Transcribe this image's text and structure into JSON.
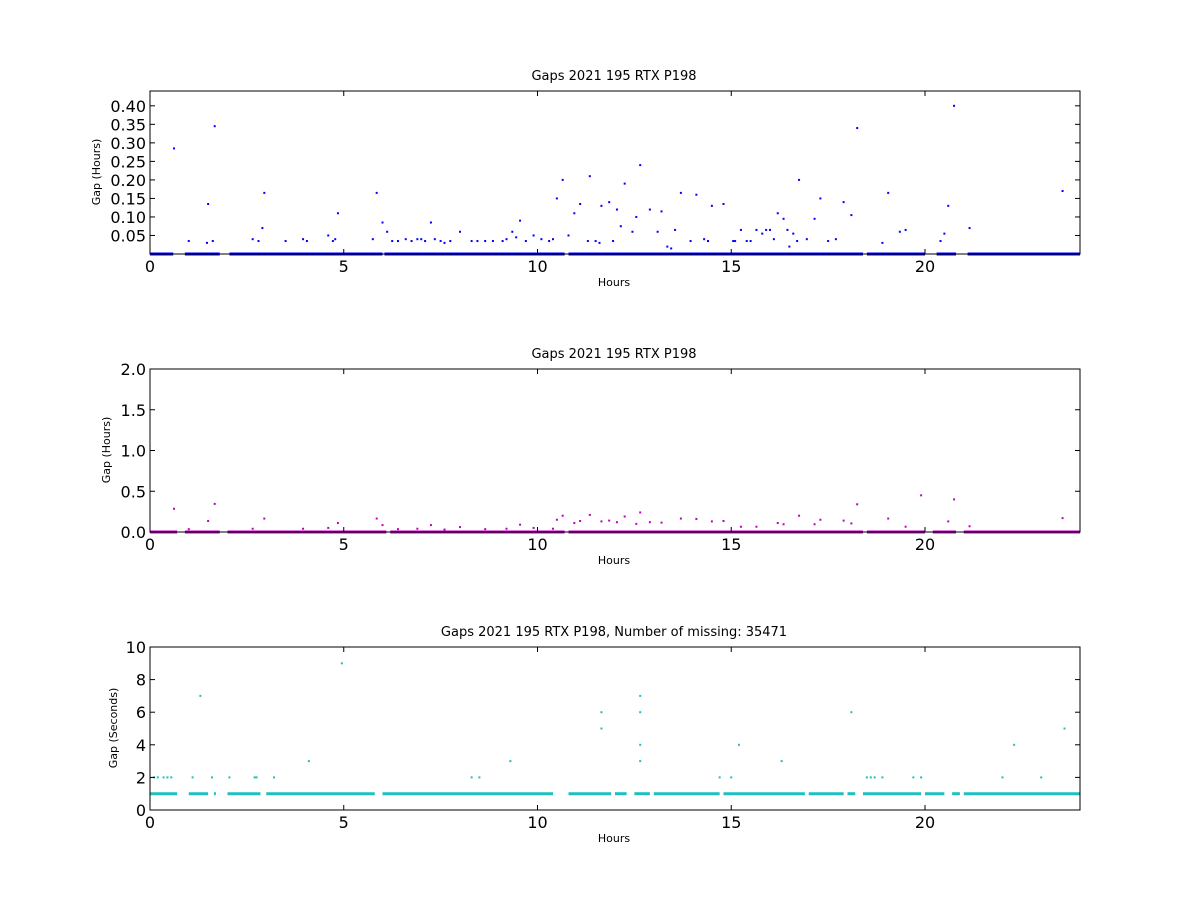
{
  "chart_data": [
    {
      "type": "scatter",
      "title": "Gaps 2021 195 RTX  P198",
      "xlabel": "Hours",
      "ylabel": "Gap (Hours)",
      "xlim": [
        0,
        24
      ],
      "ylim": [
        0,
        0.44
      ],
      "xticks": [
        0,
        5,
        10,
        15,
        20
      ],
      "xtick_labels": [
        "0",
        "5",
        "10",
        "15",
        "20"
      ],
      "yticks": [
        0.05,
        0.1,
        0.15,
        0.2,
        0.25,
        0.3,
        0.35,
        0.4
      ],
      "ytick_labels": [
        "0.05",
        "0.10",
        "0.15",
        "0.20",
        "0.25",
        "0.30",
        "0.35",
        "0.40"
      ],
      "color": "#0000ff",
      "baseline_value": 0.0,
      "baseline_ranges": [
        [
          0,
          0.6
        ],
        [
          0.9,
          1.8
        ],
        [
          2.05,
          6.0
        ],
        [
          6.05,
          10.7
        ],
        [
          10.8,
          18.4
        ],
        [
          18.5,
          20.0
        ],
        [
          20.3,
          20.8
        ],
        [
          21.1,
          24
        ]
      ],
      "points": [
        [
          0.62,
          0.285
        ],
        [
          1.0,
          0.035
        ],
        [
          1.47,
          0.03
        ],
        [
          1.5,
          0.135
        ],
        [
          1.62,
          0.035
        ],
        [
          1.67,
          0.345
        ],
        [
          2.65,
          0.04
        ],
        [
          2.8,
          0.035
        ],
        [
          2.9,
          0.07
        ],
        [
          2.95,
          0.165
        ],
        [
          3.5,
          0.035
        ],
        [
          3.95,
          0.04
        ],
        [
          4.05,
          0.035
        ],
        [
          4.6,
          0.05
        ],
        [
          4.72,
          0.035
        ],
        [
          4.78,
          0.04
        ],
        [
          4.85,
          0.11
        ],
        [
          5.75,
          0.04
        ],
        [
          5.85,
          0.165
        ],
        [
          6.0,
          0.085
        ],
        [
          6.12,
          0.06
        ],
        [
          6.25,
          0.035
        ],
        [
          6.4,
          0.035
        ],
        [
          6.6,
          0.04
        ],
        [
          6.75,
          0.035
        ],
        [
          6.9,
          0.04
        ],
        [
          7.0,
          0.04
        ],
        [
          7.1,
          0.035
        ],
        [
          7.25,
          0.085
        ],
        [
          7.35,
          0.04
        ],
        [
          7.5,
          0.035
        ],
        [
          7.6,
          0.03
        ],
        [
          7.75,
          0.035
        ],
        [
          8.0,
          0.06
        ],
        [
          8.3,
          0.035
        ],
        [
          8.45,
          0.035
        ],
        [
          8.65,
          0.035
        ],
        [
          8.85,
          0.035
        ],
        [
          9.1,
          0.035
        ],
        [
          9.2,
          0.04
        ],
        [
          9.35,
          0.06
        ],
        [
          9.45,
          0.045
        ],
        [
          9.55,
          0.09
        ],
        [
          9.7,
          0.035
        ],
        [
          9.9,
          0.05
        ],
        [
          10.1,
          0.04
        ],
        [
          10.3,
          0.035
        ],
        [
          10.4,
          0.04
        ],
        [
          10.5,
          0.15
        ],
        [
          10.65,
          0.2
        ],
        [
          10.8,
          0.05
        ],
        [
          10.95,
          0.11
        ],
        [
          11.1,
          0.135
        ],
        [
          11.3,
          0.035
        ],
        [
          11.35,
          0.21
        ],
        [
          11.5,
          0.035
        ],
        [
          11.6,
          0.03
        ],
        [
          11.65,
          0.13
        ],
        [
          11.85,
          0.14
        ],
        [
          11.95,
          0.035
        ],
        [
          12.05,
          0.12
        ],
        [
          12.15,
          0.075
        ],
        [
          12.25,
          0.19
        ],
        [
          12.45,
          0.06
        ],
        [
          12.55,
          0.1
        ],
        [
          12.65,
          0.24
        ],
        [
          12.9,
          0.12
        ],
        [
          13.1,
          0.06
        ],
        [
          13.2,
          0.115
        ],
        [
          13.35,
          0.02
        ],
        [
          13.45,
          0.015
        ],
        [
          13.55,
          0.065
        ],
        [
          13.7,
          0.165
        ],
        [
          13.95,
          0.035
        ],
        [
          14.1,
          0.16
        ],
        [
          14.3,
          0.04
        ],
        [
          14.4,
          0.035
        ],
        [
          14.5,
          0.13
        ],
        [
          14.8,
          0.135
        ],
        [
          15.05,
          0.035
        ],
        [
          15.1,
          0.035
        ],
        [
          15.25,
          0.065
        ],
        [
          15.4,
          0.035
        ],
        [
          15.5,
          0.035
        ],
        [
          15.65,
          0.065
        ],
        [
          15.8,
          0.055
        ],
        [
          15.9,
          0.065
        ],
        [
          16.0,
          0.065
        ],
        [
          16.1,
          0.04
        ],
        [
          16.2,
          0.11
        ],
        [
          16.35,
          0.095
        ],
        [
          16.45,
          0.065
        ],
        [
          16.5,
          0.02
        ],
        [
          16.6,
          0.055
        ],
        [
          16.7,
          0.035
        ],
        [
          16.75,
          0.2
        ],
        [
          16.95,
          0.04
        ],
        [
          17.15,
          0.095
        ],
        [
          17.3,
          0.15
        ],
        [
          17.5,
          0.035
        ],
        [
          17.7,
          0.04
        ],
        [
          17.9,
          0.14
        ],
        [
          18.1,
          0.105
        ],
        [
          18.25,
          0.34
        ],
        [
          18.9,
          0.03
        ],
        [
          19.05,
          0.165
        ],
        [
          19.35,
          0.06
        ],
        [
          19.5,
          0.065
        ],
        [
          20.4,
          0.035
        ],
        [
          20.5,
          0.055
        ],
        [
          20.6,
          0.13
        ],
        [
          20.75,
          0.4
        ],
        [
          21.15,
          0.07
        ],
        [
          23.55,
          0.17
        ]
      ]
    },
    {
      "type": "scatter",
      "title": "Gaps 2021 195 RTX  P198",
      "xlabel": "Hours",
      "ylabel": "Gap (Hours)",
      "xlim": [
        0,
        24
      ],
      "ylim": [
        0,
        2.0
      ],
      "xticks": [
        0,
        5,
        10,
        15,
        20
      ],
      "xtick_labels": [
        "0",
        "5",
        "10",
        "15",
        "20"
      ],
      "yticks": [
        0.0,
        0.5,
        1.0,
        1.5,
        2.0
      ],
      "ytick_labels": [
        "0.0",
        "0.5",
        "1.0",
        "1.5",
        "2.0"
      ],
      "color": "#bf00bf",
      "baseline_value": 0.0,
      "baseline_ranges": [
        [
          0,
          0.7
        ],
        [
          0.9,
          1.8
        ],
        [
          2.0,
          6.1
        ],
        [
          6.2,
          10.7
        ],
        [
          10.8,
          18.4
        ],
        [
          18.5,
          20.0
        ],
        [
          20.2,
          20.8
        ],
        [
          21.0,
          24
        ]
      ],
      "points": [
        [
          0.62,
          0.285
        ],
        [
          1.0,
          0.035
        ],
        [
          1.5,
          0.135
        ],
        [
          1.67,
          0.345
        ],
        [
          2.65,
          0.04
        ],
        [
          2.95,
          0.165
        ],
        [
          3.95,
          0.04
        ],
        [
          4.6,
          0.05
        ],
        [
          4.85,
          0.11
        ],
        [
          5.85,
          0.165
        ],
        [
          6.0,
          0.085
        ],
        [
          6.4,
          0.035
        ],
        [
          6.9,
          0.04
        ],
        [
          7.25,
          0.085
        ],
        [
          7.6,
          0.03
        ],
        [
          8.0,
          0.06
        ],
        [
          8.65,
          0.035
        ],
        [
          9.2,
          0.04
        ],
        [
          9.55,
          0.09
        ],
        [
          9.9,
          0.05
        ],
        [
          10.4,
          0.04
        ],
        [
          10.5,
          0.15
        ],
        [
          10.65,
          0.2
        ],
        [
          10.95,
          0.11
        ],
        [
          11.1,
          0.135
        ],
        [
          11.35,
          0.21
        ],
        [
          11.65,
          0.13
        ],
        [
          11.85,
          0.14
        ],
        [
          12.05,
          0.12
        ],
        [
          12.25,
          0.19
        ],
        [
          12.55,
          0.1
        ],
        [
          12.65,
          0.24
        ],
        [
          12.9,
          0.12
        ],
        [
          13.2,
          0.115
        ],
        [
          13.7,
          0.165
        ],
        [
          14.1,
          0.16
        ],
        [
          14.5,
          0.13
        ],
        [
          14.8,
          0.135
        ],
        [
          15.25,
          0.065
        ],
        [
          15.65,
          0.065
        ],
        [
          16.2,
          0.11
        ],
        [
          16.35,
          0.095
        ],
        [
          16.75,
          0.2
        ],
        [
          17.15,
          0.095
        ],
        [
          17.3,
          0.15
        ],
        [
          17.9,
          0.14
        ],
        [
          18.1,
          0.105
        ],
        [
          18.25,
          0.34
        ],
        [
          19.05,
          0.165
        ],
        [
          19.5,
          0.065
        ],
        [
          19.9,
          0.45
        ],
        [
          20.6,
          0.13
        ],
        [
          20.75,
          0.4
        ],
        [
          21.15,
          0.07
        ],
        [
          23.55,
          0.17
        ]
      ]
    },
    {
      "type": "scatter",
      "title": "Gaps 2021 195 RTX  P198, Number of missing: 35471",
      "xlabel": "Hours",
      "ylabel": "Gap (Seconds)",
      "xlim": [
        0,
        24
      ],
      "ylim": [
        0,
        10
      ],
      "xticks": [
        0,
        5,
        10,
        15,
        20
      ],
      "xtick_labels": [
        "0",
        "5",
        "10",
        "15",
        "20"
      ],
      "yticks": [
        0,
        2,
        4,
        6,
        8,
        10
      ],
      "ytick_labels": [
        "0",
        "2",
        "4",
        "6",
        "8",
        "10"
      ],
      "color": "#1fbfbf",
      "baseline_value": 1.0,
      "baseline_ranges": [
        [
          0,
          0.7
        ],
        [
          1.0,
          1.5
        ],
        [
          1.65,
          1.7
        ],
        [
          2.0,
          2.85
        ],
        [
          3.0,
          5.8
        ],
        [
          6.0,
          10.4
        ],
        [
          10.8,
          11.9
        ],
        [
          12.0,
          12.3
        ],
        [
          12.5,
          12.9
        ],
        [
          13.0,
          14.7
        ],
        [
          14.8,
          16.9
        ],
        [
          17.0,
          17.9
        ],
        [
          18.0,
          18.2
        ],
        [
          18.4,
          19.9
        ],
        [
          20.0,
          20.5
        ],
        [
          20.7,
          20.9
        ],
        [
          21.0,
          24
        ]
      ],
      "points": [
        [
          0.1,
          2
        ],
        [
          0.2,
          2
        ],
        [
          0.35,
          2
        ],
        [
          0.45,
          2
        ],
        [
          0.55,
          2
        ],
        [
          1.1,
          2
        ],
        [
          1.3,
          7
        ],
        [
          1.6,
          2
        ],
        [
          2.05,
          2
        ],
        [
          2.7,
          2
        ],
        [
          2.75,
          2
        ],
        [
          3.2,
          2
        ],
        [
          4.1,
          3
        ],
        [
          4.95,
          9
        ],
        [
          8.3,
          2
        ],
        [
          8.5,
          2
        ],
        [
          9.3,
          3
        ],
        [
          11.65,
          6
        ],
        [
          11.65,
          5
        ],
        [
          12.65,
          7
        ],
        [
          12.65,
          6
        ],
        [
          12.65,
          4
        ],
        [
          12.65,
          3
        ],
        [
          14.7,
          2
        ],
        [
          15.0,
          2
        ],
        [
          15.2,
          4
        ],
        [
          16.3,
          3
        ],
        [
          18.1,
          6
        ],
        [
          18.5,
          2
        ],
        [
          18.6,
          2
        ],
        [
          18.7,
          2
        ],
        [
          18.9,
          2
        ],
        [
          19.7,
          2
        ],
        [
          19.9,
          2
        ],
        [
          22.0,
          2
        ],
        [
          22.3,
          4
        ],
        [
          23.0,
          2
        ],
        [
          23.6,
          5
        ]
      ]
    }
  ]
}
